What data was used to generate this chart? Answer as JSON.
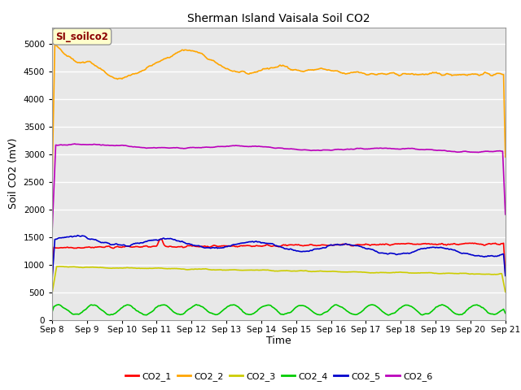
{
  "title": "Sherman Island Vaisala Soil CO2",
  "ylabel": "Soil CO2 (mV)",
  "xlabel": "Time",
  "annotation_text": "SI_soilco2",
  "annotation_color": "#8B0000",
  "annotation_bg": "#FFFFCC",
  "bg_color": "#E8E8E8",
  "fig_bg": "#FFFFFF",
  "xlim_days": [
    8,
    21
  ],
  "ylim": [
    0,
    5300
  ],
  "yticks": [
    0,
    500,
    1000,
    1500,
    2000,
    2500,
    3000,
    3500,
    4000,
    4500,
    5000
  ],
  "xtick_labels": [
    "Sep 8",
    "Sep 9",
    "Sep 10",
    "Sep 11",
    "Sep 12",
    "Sep 13",
    "Sep 14",
    "Sep 15",
    "Sep 16",
    "Sep 17",
    "Sep 18",
    "Sep 19",
    "Sep 20",
    "Sep 21"
  ],
  "xtick_positions": [
    8,
    9,
    10,
    11,
    12,
    13,
    14,
    15,
    16,
    17,
    18,
    19,
    20,
    21
  ],
  "series_colors": {
    "CO2_1": "#FF0000",
    "CO2_2": "#FFA500",
    "CO2_3": "#CCCC00",
    "CO2_4": "#00CC00",
    "CO2_5": "#0000CC",
    "CO2_6": "#BB00BB"
  },
  "legend_labels": [
    "CO2_1",
    "CO2_2",
    "CO2_3",
    "CO2_4",
    "CO2_5",
    "CO2_6"
  ],
  "legend_colors": [
    "#FF0000",
    "#FFA500",
    "#CCCC00",
    "#00CC00",
    "#0000CC",
    "#BB00BB"
  ]
}
